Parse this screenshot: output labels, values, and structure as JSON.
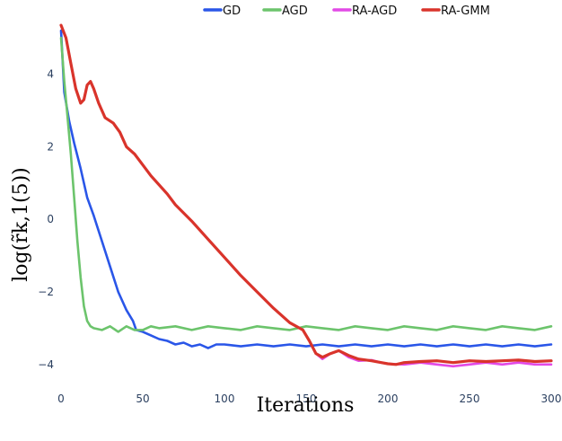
{
  "chart_data": {
    "type": "line",
    "title": "",
    "xlabel": "Iterations",
    "ylabel": "log(r̃k,1(5))",
    "xlim": [
      0,
      300
    ],
    "ylim": [
      -4.6,
      5.5
    ],
    "xticks": [
      0,
      50,
      100,
      150,
      200,
      250,
      300
    ],
    "yticks": [
      -4,
      -2,
      0,
      2,
      4
    ],
    "ytick_labels": [
      "−4",
      "−2",
      "0",
      "2",
      "4"
    ],
    "grid": false,
    "legend_position": "top",
    "series": [
      {
        "name": "GD",
        "color": "#2a56e8",
        "points": [
          [
            0,
            5.2
          ],
          [
            2,
            3.5
          ],
          [
            5,
            2.7
          ],
          [
            8,
            2.1
          ],
          [
            12,
            1.4
          ],
          [
            16,
            0.6
          ],
          [
            20,
            0.1
          ],
          [
            25,
            -0.6
          ],
          [
            30,
            -1.3
          ],
          [
            35,
            -2.0
          ],
          [
            40,
            -2.5
          ],
          [
            44,
            -2.8
          ],
          [
            46,
            -3.05
          ],
          [
            50,
            -3.1
          ],
          [
            55,
            -3.2
          ],
          [
            60,
            -3.3
          ],
          [
            65,
            -3.35
          ],
          [
            70,
            -3.45
          ],
          [
            75,
            -3.4
          ],
          [
            80,
            -3.5
          ],
          [
            85,
            -3.45
          ],
          [
            90,
            -3.55
          ],
          [
            95,
            -3.45
          ],
          [
            100,
            -3.45
          ],
          [
            110,
            -3.5
          ],
          [
            120,
            -3.45
          ],
          [
            130,
            -3.5
          ],
          [
            140,
            -3.45
          ],
          [
            150,
            -3.5
          ],
          [
            160,
            -3.45
          ],
          [
            170,
            -3.5
          ],
          [
            180,
            -3.45
          ],
          [
            190,
            -3.5
          ],
          [
            200,
            -3.45
          ],
          [
            210,
            -3.5
          ],
          [
            220,
            -3.45
          ],
          [
            230,
            -3.5
          ],
          [
            240,
            -3.45
          ],
          [
            250,
            -3.5
          ],
          [
            260,
            -3.45
          ],
          [
            270,
            -3.5
          ],
          [
            280,
            -3.45
          ],
          [
            290,
            -3.5
          ],
          [
            300,
            -3.45
          ]
        ]
      },
      {
        "name": "AGD",
        "color": "#6cc46c",
        "points": [
          [
            0,
            5.0
          ],
          [
            2,
            3.8
          ],
          [
            4,
            2.8
          ],
          [
            6,
            1.8
          ],
          [
            8,
            0.6
          ],
          [
            10,
            -0.6
          ],
          [
            12,
            -1.6
          ],
          [
            14,
            -2.4
          ],
          [
            16,
            -2.8
          ],
          [
            18,
            -2.95
          ],
          [
            20,
            -3.0
          ],
          [
            25,
            -3.05
          ],
          [
            30,
            -2.95
          ],
          [
            35,
            -3.1
          ],
          [
            40,
            -2.95
          ],
          [
            45,
            -3.05
          ],
          [
            50,
            -3.05
          ],
          [
            55,
            -2.95
          ],
          [
            60,
            -3.0
          ],
          [
            70,
            -2.95
          ],
          [
            80,
            -3.05
          ],
          [
            90,
            -2.95
          ],
          [
            100,
            -3.0
          ],
          [
            110,
            -3.05
          ],
          [
            120,
            -2.95
          ],
          [
            130,
            -3.0
          ],
          [
            140,
            -3.05
          ],
          [
            150,
            -2.95
          ],
          [
            160,
            -3.0
          ],
          [
            170,
            -3.05
          ],
          [
            180,
            -2.95
          ],
          [
            190,
            -3.0
          ],
          [
            200,
            -3.05
          ],
          [
            210,
            -2.95
          ],
          [
            220,
            -3.0
          ],
          [
            230,
            -3.05
          ],
          [
            240,
            -2.95
          ],
          [
            250,
            -3.0
          ],
          [
            260,
            -3.05
          ],
          [
            270,
            -2.95
          ],
          [
            280,
            -3.0
          ],
          [
            290,
            -3.05
          ],
          [
            300,
            -2.95
          ]
        ]
      },
      {
        "name": "RA-AGD",
        "color": "#e24ae6",
        "points": [
          [
            0,
            5.35
          ],
          [
            3,
            5.0
          ],
          [
            6,
            4.3
          ],
          [
            9,
            3.6
          ],
          [
            12,
            3.2
          ],
          [
            14,
            3.3
          ],
          [
            16,
            3.7
          ],
          [
            18,
            3.8
          ],
          [
            20,
            3.6
          ],
          [
            23,
            3.2
          ],
          [
            27,
            2.8
          ],
          [
            32,
            2.65
          ],
          [
            36,
            2.4
          ],
          [
            40,
            2.0
          ],
          [
            45,
            1.8
          ],
          [
            50,
            1.5
          ],
          [
            55,
            1.2
          ],
          [
            60,
            0.95
          ],
          [
            65,
            0.7
          ],
          [
            70,
            0.4
          ],
          [
            80,
            -0.05
          ],
          [
            90,
            -0.55
          ],
          [
            100,
            -1.05
          ],
          [
            110,
            -1.55
          ],
          [
            120,
            -2.0
          ],
          [
            130,
            -2.45
          ],
          [
            140,
            -2.85
          ],
          [
            148,
            -3.05
          ],
          [
            152,
            -3.35
          ],
          [
            156,
            -3.7
          ],
          [
            160,
            -3.85
          ],
          [
            165,
            -3.7
          ],
          [
            170,
            -3.62
          ],
          [
            176,
            -3.8
          ],
          [
            182,
            -3.9
          ],
          [
            190,
            -3.88
          ],
          [
            196,
            -3.95
          ],
          [
            200,
            -3.98
          ],
          [
            210,
            -4.0
          ],
          [
            220,
            -3.95
          ],
          [
            230,
            -4.0
          ],
          [
            240,
            -4.05
          ],
          [
            250,
            -4.0
          ],
          [
            260,
            -3.95
          ],
          [
            270,
            -4.0
          ],
          [
            280,
            -3.95
          ],
          [
            290,
            -4.0
          ],
          [
            300,
            -4.0
          ]
        ]
      },
      {
        "name": "RA-GMM",
        "color": "#d9342b",
        "points": [
          [
            0,
            5.35
          ],
          [
            3,
            5.0
          ],
          [
            6,
            4.3
          ],
          [
            9,
            3.6
          ],
          [
            12,
            3.2
          ],
          [
            14,
            3.3
          ],
          [
            16,
            3.7
          ],
          [
            18,
            3.8
          ],
          [
            20,
            3.6
          ],
          [
            23,
            3.2
          ],
          [
            27,
            2.8
          ],
          [
            32,
            2.65
          ],
          [
            36,
            2.4
          ],
          [
            40,
            2.0
          ],
          [
            45,
            1.8
          ],
          [
            50,
            1.5
          ],
          [
            55,
            1.2
          ],
          [
            60,
            0.95
          ],
          [
            65,
            0.7
          ],
          [
            70,
            0.4
          ],
          [
            80,
            -0.05
          ],
          [
            90,
            -0.55
          ],
          [
            100,
            -1.05
          ],
          [
            110,
            -1.55
          ],
          [
            120,
            -2.0
          ],
          [
            130,
            -2.45
          ],
          [
            140,
            -2.85
          ],
          [
            148,
            -3.05
          ],
          [
            152,
            -3.35
          ],
          [
            156,
            -3.7
          ],
          [
            160,
            -3.8
          ],
          [
            165,
            -3.7
          ],
          [
            170,
            -3.62
          ],
          [
            176,
            -3.75
          ],
          [
            182,
            -3.85
          ],
          [
            190,
            -3.9
          ],
          [
            196,
            -3.95
          ],
          [
            200,
            -3.98
          ],
          [
            205,
            -4.0
          ],
          [
            210,
            -3.95
          ],
          [
            220,
            -3.92
          ],
          [
            230,
            -3.9
          ],
          [
            240,
            -3.95
          ],
          [
            250,
            -3.9
          ],
          [
            260,
            -3.92
          ],
          [
            270,
            -3.9
          ],
          [
            280,
            -3.88
          ],
          [
            290,
            -3.92
          ],
          [
            300,
            -3.9
          ]
        ]
      }
    ]
  }
}
